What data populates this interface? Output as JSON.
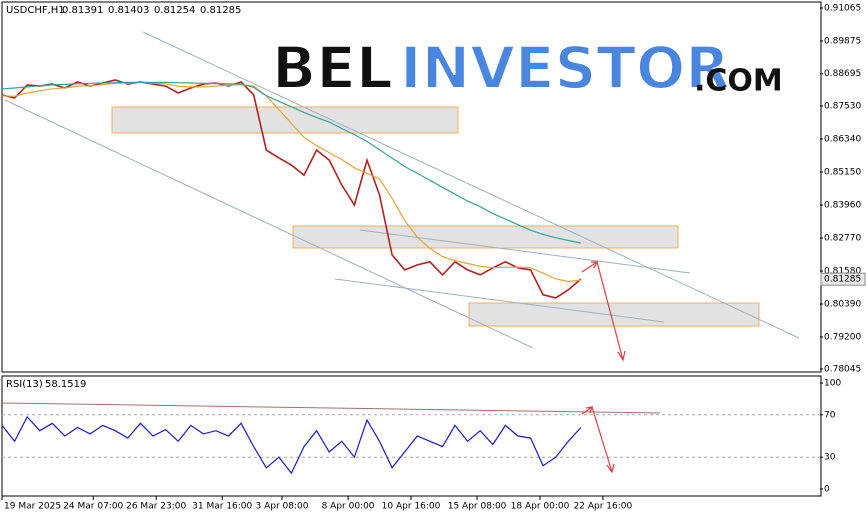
{
  "watermark": [
    "BEL",
    "INVESTOR",
    ".COM"
  ],
  "chart_data": [
    {
      "type": "line",
      "symbol": "USDCHF,H1",
      "ohlc": [
        0.81391,
        0.81403,
        0.81254,
        0.81285
      ],
      "last_price": 0.81285,
      "x": [
        0,
        4,
        8,
        12,
        16,
        20,
        24,
        28,
        32,
        36,
        40,
        44,
        48,
        52,
        56,
        60,
        64,
        68,
        72,
        76,
        80,
        84,
        88,
        92,
        96,
        100,
        104,
        108,
        112,
        116,
        120,
        124,
        128,
        132,
        136,
        140,
        144,
        148,
        152,
        156,
        160,
        164,
        168,
        172,
        176,
        180,
        184
      ],
      "xlim": [
        0,
        260
      ],
      "xticks": [
        {
          "value": 0,
          "label": "19 Mar 2025"
        },
        {
          "value": 29,
          "label": "24 Mar 07:00"
        },
        {
          "value": 49,
          "label": "26 Mar 23:00"
        },
        {
          "value": 70,
          "label": "31 Mar 16:00"
        },
        {
          "value": 89,
          "label": "3 Apr 08:00"
        },
        {
          "value": 110,
          "label": "8 Apr 00:00"
        },
        {
          "value": 130,
          "label": "10 Apr 16:00"
        },
        {
          "value": 151,
          "label": "15 Apr 08:00"
        },
        {
          "value": 171,
          "label": "18 Apr 00:00"
        },
        {
          "value": 191,
          "label": "22 Apr 16:00"
        }
      ],
      "ylim": [
        0.78045,
        0.91065
      ],
      "yticks": [
        0.91065,
        0.89875,
        0.88695,
        {
          "value": 0.8753,
          "label": "0.87530"
        },
        {
          "value": 0.8634,
          "label": "0.86340"
        },
        {
          "value": 0.8515,
          "label": "0.85150"
        },
        {
          "value": 0.8396,
          "label": "0.83960"
        },
        {
          "value": 0.8277,
          "label": "0.82770"
        },
        {
          "value": 0.8158,
          "label": "0.81580"
        },
        {
          "value": 0.8039,
          "label": "0.80390"
        },
        {
          "value": 0.792,
          "label": "0.79200"
        },
        0.78045
      ],
      "series": [
        {
          "color": "#b22222",
          "values": [
            0.8793,
            0.8782,
            0.8829,
            0.8825,
            0.8832,
            0.8818,
            0.884,
            0.8825,
            0.8836,
            0.8847,
            0.8832,
            0.884,
            0.8832,
            0.8825,
            0.88,
            0.8818,
            0.8832,
            0.8836,
            0.8825,
            0.884,
            0.8793,
            0.8594,
            0.8566,
            0.854,
            0.8504,
            0.8594,
            0.8558,
            0.8468,
            0.8396,
            0.8558,
            0.8432,
            0.8216,
            0.8162,
            0.818,
            0.8191,
            0.8144,
            0.8191,
            0.8162,
            0.8144,
            0.8169,
            0.8191,
            0.8169,
            0.8162,
            0.8072,
            0.8061,
            0.809,
            0.8129
          ]
        },
        {
          "color": "#e8a33c",
          "values": [
            0.879,
            0.8788,
            0.88,
            0.8808,
            0.8815,
            0.8818,
            0.8825,
            0.8826,
            0.883,
            0.8835,
            0.8836,
            0.8838,
            0.8836,
            0.8833,
            0.8824,
            0.8822,
            0.8822,
            0.8825,
            0.8828,
            0.883,
            0.8825,
            0.879,
            0.874,
            0.869,
            0.864,
            0.861,
            0.8585,
            0.856,
            0.853,
            0.851,
            0.849,
            0.842,
            0.834,
            0.828,
            0.824,
            0.821,
            0.8195,
            0.8185,
            0.8175,
            0.817,
            0.8172,
            0.8172,
            0.817,
            0.815,
            0.813,
            0.812,
            0.8125
          ]
        },
        {
          "color": "#3aa39a",
          "values": [
            0.8815,
            0.8818,
            0.8822,
            0.8826,
            0.8829,
            0.8831,
            0.8833,
            0.8835,
            0.8836,
            0.8837,
            0.8838,
            0.8838,
            0.8838,
            0.8838,
            0.8837,
            0.8836,
            0.8835,
            0.8834,
            0.8833,
            0.8832,
            0.882,
            0.879,
            0.877,
            0.875,
            0.873,
            0.8712,
            0.8695,
            0.8672,
            0.865,
            0.8625,
            0.8595,
            0.8565,
            0.8535,
            0.851,
            0.8485,
            0.846,
            0.8435,
            0.841,
            0.839,
            0.8365,
            0.8345,
            0.8325,
            0.8305,
            0.829,
            0.8278,
            0.8268,
            0.8259
          ]
        }
      ]
    },
    {
      "type": "line",
      "name": "RSI(13)",
      "last_value": 58.1519,
      "x": [
        0,
        4,
        8,
        12,
        16,
        20,
        24,
        28,
        32,
        36,
        40,
        44,
        48,
        52,
        56,
        60,
        64,
        68,
        72,
        76,
        80,
        84,
        88,
        92,
        96,
        100,
        104,
        108,
        112,
        116,
        120,
        124,
        128,
        132,
        136,
        140,
        144,
        148,
        152,
        156,
        160,
        164,
        168,
        172,
        176,
        180,
        184
      ],
      "xlim": [
        0,
        260
      ],
      "ylim": [
        0,
        100
      ],
      "yticks": [
        100,
        70,
        30,
        0
      ],
      "levels": [
        70,
        30
      ],
      "series": [
        {
          "color": "#1a1acd",
          "values": [
            60,
            45,
            68,
            55,
            62,
            50,
            58,
            52,
            60,
            55,
            48,
            62,
            50,
            56,
            45,
            60,
            52,
            55,
            50,
            62,
            40,
            20,
            30,
            15,
            40,
            55,
            35,
            45,
            30,
            65,
            45,
            20,
            35,
            50,
            45,
            40,
            60,
            45,
            55,
            42,
            60,
            50,
            48,
            22,
            30,
            45,
            58
          ]
        }
      ]
    }
  ]
}
